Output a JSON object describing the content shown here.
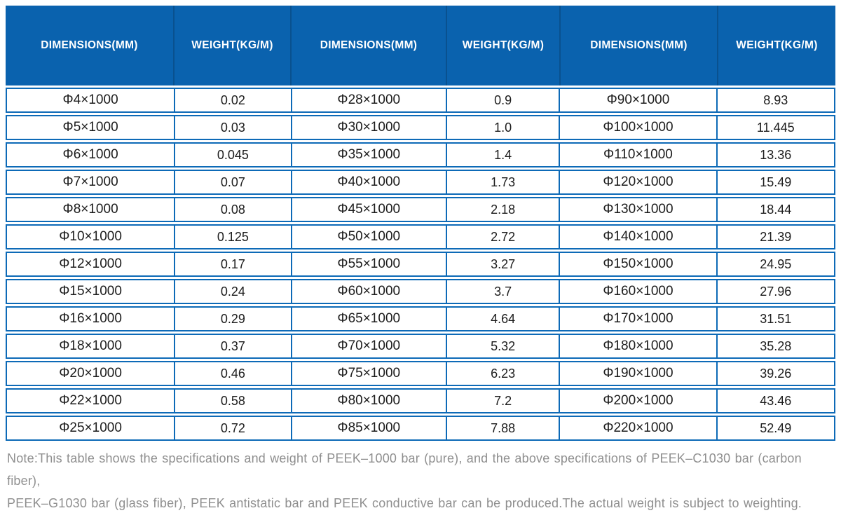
{
  "table": {
    "columns": [
      "DIMENSIONS(MM)",
      "WEIGHT(KG/M)",
      "DIMENSIONS(MM)",
      "WEIGHT(KG/M)",
      "DIMENSIONS(MM)",
      "WEIGHT(KG/M)"
    ],
    "rows": [
      [
        "Φ4×1000",
        "0.02",
        "Φ28×1000",
        "0.9",
        "Φ90×1000",
        "8.93"
      ],
      [
        "Φ5×1000",
        "0.03",
        "Φ30×1000",
        "1.0",
        "Φ100×1000",
        "11.445"
      ],
      [
        "Φ6×1000",
        "0.045",
        "Φ35×1000",
        "1.4",
        "Φ110×1000",
        "13.36"
      ],
      [
        "Φ7×1000",
        "0.07",
        "Φ40×1000",
        "1.73",
        "Φ120×1000",
        "15.49"
      ],
      [
        "Φ8×1000",
        "0.08",
        "Φ45×1000",
        "2.18",
        "Φ130×1000",
        "18.44"
      ],
      [
        "Φ10×1000",
        "0.125",
        "Φ50×1000",
        "2.72",
        "Φ140×1000",
        "21.39"
      ],
      [
        "Φ12×1000",
        "0.17",
        "Φ55×1000",
        "3.27",
        "Φ150×1000",
        "24.95"
      ],
      [
        "Φ15×1000",
        "0.24",
        "Φ60×1000",
        "3.7",
        "Φ160×1000",
        "27.96"
      ],
      [
        "Φ16×1000",
        "0.29",
        "Φ65×1000",
        "4.64",
        "Φ170×1000",
        "31.51"
      ],
      [
        "Φ18×1000",
        "0.37",
        "Φ70×1000",
        "5.32",
        "Φ180×1000",
        "35.28"
      ],
      [
        "Φ20×1000",
        "0.46",
        "Φ75×1000",
        "6.23",
        "Φ190×1000",
        "39.26"
      ],
      [
        "Φ22×1000",
        "0.58",
        "Φ80×1000",
        "7.2",
        "Φ200×1000",
        "43.46"
      ],
      [
        "Φ25×1000",
        "0.72",
        "Φ85×1000",
        "7.88",
        "Φ220×1000",
        "52.49"
      ]
    ]
  },
  "note": {
    "line1": "Note:This table shows the specifications and weight of PEEK–1000 bar (pure), and the above specifications of PEEK–C1030 bar (carbon fiber),",
    "line2": "PEEK–G1030 bar (glass fiber), PEEK antistatic bar and PEEK conductive bar can be produced.The actual weight is subject to weighting."
  },
  "colors": {
    "header_bg": "#0a62ae",
    "header_divider": "#09518f",
    "cell_border": "#0d6ab7",
    "note_text": "#8f8f8f"
  }
}
